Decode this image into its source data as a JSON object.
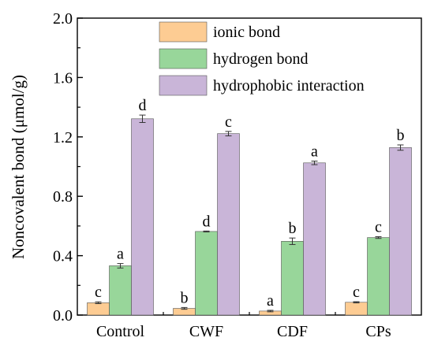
{
  "chart_data": {
    "type": "bar",
    "title": "",
    "xlabel": "",
    "ylabel": "Noncovalent bond (μmol/g)",
    "ylim": [
      0,
      2.0
    ],
    "yticks": [
      0.0,
      0.4,
      0.8,
      1.2,
      1.6,
      2.0
    ],
    "ytick_labels": [
      "0.0",
      "0.4",
      "0.8",
      "1.2",
      "1.6",
      "2.0"
    ],
    "categories": [
      "Control",
      "CWF",
      "CDF",
      "CPs"
    ],
    "legend_position": "top-right",
    "grid": false,
    "series": [
      {
        "name": "ionic bond",
        "color": "#fdcc93",
        "values": [
          0.083,
          0.045,
          0.027,
          0.086
        ],
        "errors": [
          0.006,
          0.006,
          0.005,
          0.004
        ],
        "labels": [
          "c",
          "b",
          "a",
          "c"
        ]
      },
      {
        "name": "hydrogen bond",
        "color": "#98d69a",
        "values": [
          0.332,
          0.563,
          0.497,
          0.522
        ],
        "errors": [
          0.015,
          0.003,
          0.022,
          0.006
        ],
        "labels": [
          "a",
          "d",
          "b",
          "c"
        ]
      },
      {
        "name": "hydrophobic interaction",
        "color": "#c9b5d8",
        "values": [
          1.322,
          1.222,
          1.025,
          1.128
        ],
        "errors": [
          0.025,
          0.015,
          0.012,
          0.018
        ],
        "labels": [
          "d",
          "c",
          "a",
          "b"
        ]
      }
    ]
  }
}
